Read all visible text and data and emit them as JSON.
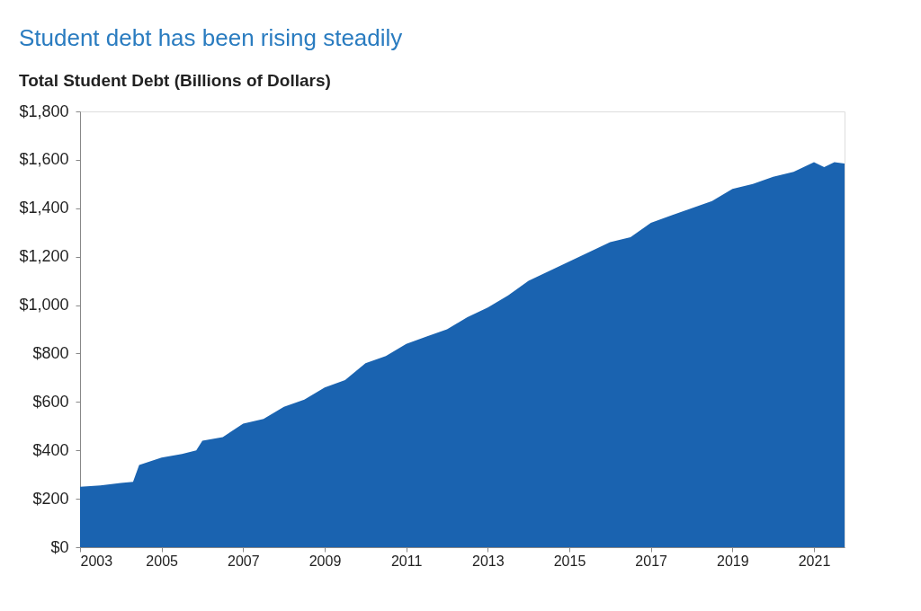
{
  "chart_data": {
    "type": "area",
    "title": "Student debt has been rising steadily",
    "subtitle": "Total Student Debt (Billions of Dollars)",
    "x": [
      2003.0,
      2003.5,
      2004.0,
      2004.3,
      2004.45,
      2005.0,
      2005.5,
      2005.85,
      2006.0,
      2006.5,
      2007.0,
      2007.5,
      2008.0,
      2008.5,
      2009.0,
      2009.5,
      2010.0,
      2010.5,
      2011.0,
      2011.5,
      2012.0,
      2012.5,
      2013.0,
      2013.5,
      2014.0,
      2014.5,
      2015.0,
      2015.5,
      2016.0,
      2016.5,
      2017.0,
      2017.5,
      2018.0,
      2018.5,
      2019.0,
      2019.5,
      2020.0,
      2020.5,
      2021.0,
      2021.25,
      2021.5,
      2021.75
    ],
    "series": [
      {
        "color": "#1a63b0",
        "values": [
          250,
          255,
          265,
          270,
          340,
          370,
          385,
          400,
          440,
          455,
          510,
          530,
          580,
          610,
          660,
          690,
          760,
          790,
          840,
          870,
          900,
          950,
          990,
          1040,
          1100,
          1140,
          1180,
          1220,
          1260,
          1280,
          1340,
          1370,
          1400,
          1430,
          1480,
          1500,
          1530,
          1550,
          1590,
          1570,
          1590,
          1585
        ]
      }
    ],
    "xlim": [
      2003,
      2021.75
    ],
    "xticks": [
      2003,
      2005,
      2007,
      2009,
      2011,
      2013,
      2015,
      2017,
      2019,
      2021
    ],
    "ylim": [
      0,
      1800
    ],
    "yticks": [
      {
        "value": 0,
        "label": "$0"
      },
      {
        "value": 200,
        "label": "$200"
      },
      {
        "value": 400,
        "label": "$400"
      },
      {
        "value": 600,
        "label": "$600"
      },
      {
        "value": 800,
        "label": "$800"
      },
      {
        "value": 1000,
        "label": "$1,000"
      },
      {
        "value": 1200,
        "label": "$1,200"
      },
      {
        "value": 1400,
        "label": "$1,400"
      },
      {
        "value": 1600,
        "label": "$1,600"
      },
      {
        "value": 1800,
        "label": "$1,800"
      }
    ],
    "grid": false
  }
}
